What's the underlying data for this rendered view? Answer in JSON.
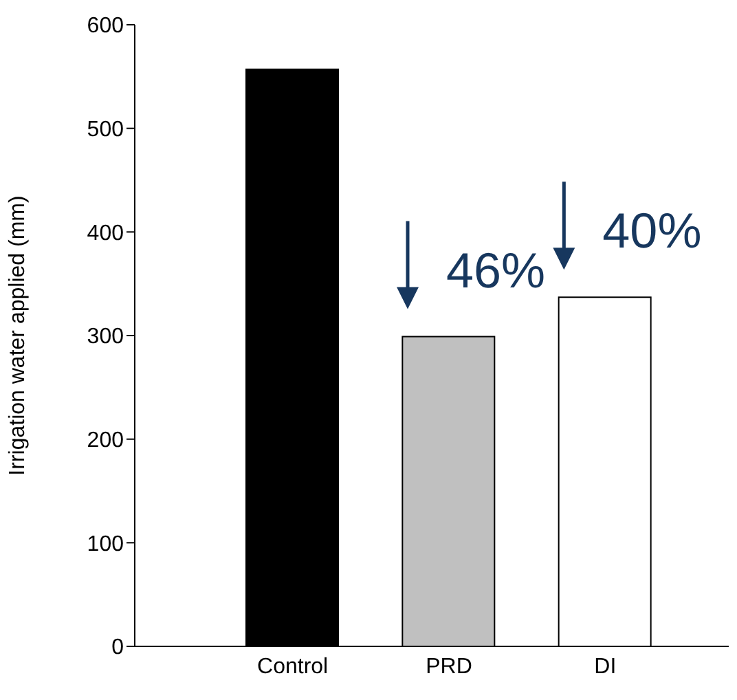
{
  "chart_data": {
    "type": "bar",
    "ylabel": "Irrigation water applied (mm)",
    "categories": [
      "Control",
      "PRD",
      "DI"
    ],
    "values": [
      557,
      299,
      337
    ],
    "colors": [
      "#000000",
      "#c0c0c0",
      "#ffffff"
    ],
    "ylim": [
      0,
      600
    ],
    "yticks": [
      0,
      100,
      200,
      300,
      400,
      500,
      600
    ],
    "annotations": [
      "46%",
      "40%"
    ]
  }
}
